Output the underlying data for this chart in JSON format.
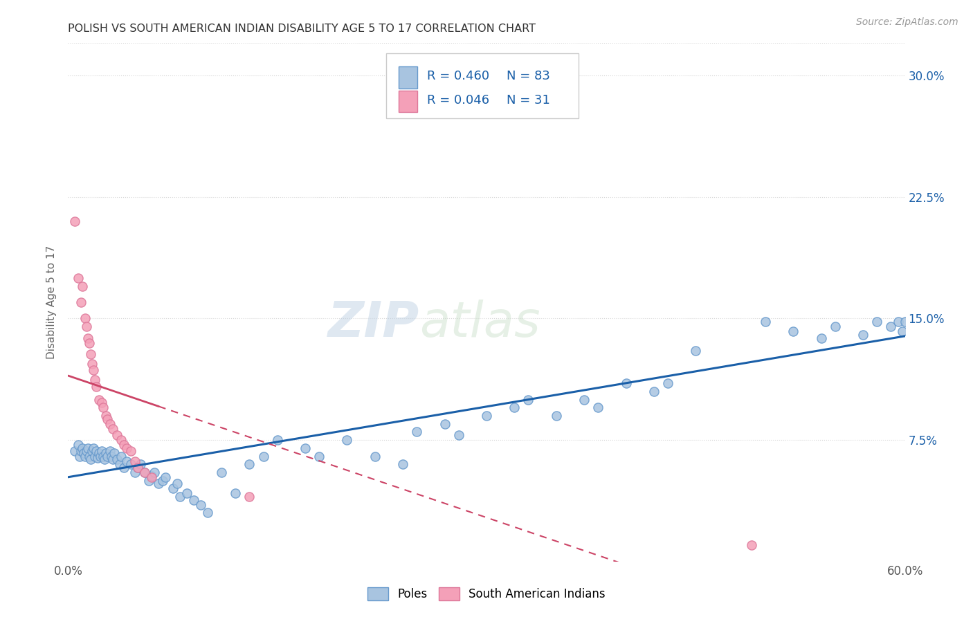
{
  "title": "POLISH VS SOUTH AMERICAN INDIAN DISABILITY AGE 5 TO 17 CORRELATION CHART",
  "source": "Source: ZipAtlas.com",
  "ylabel": "Disability Age 5 to 17",
  "xlim": [
    0.0,
    0.6
  ],
  "ylim": [
    0.0,
    0.32
  ],
  "xticks": [
    0.0,
    0.1,
    0.2,
    0.3,
    0.4,
    0.5,
    0.6
  ],
  "xticklabels": [
    "0.0%",
    "",
    "",
    "",
    "",
    "",
    "60.0%"
  ],
  "yticks": [
    0.0,
    0.075,
    0.15,
    0.225,
    0.3
  ],
  "yticklabels": [
    "",
    "7.5%",
    "15.0%",
    "22.5%",
    "30.0%"
  ],
  "poles_color": "#a8c4e0",
  "poles_edge_color": "#6699cc",
  "sa_color": "#f4a0b8",
  "sa_edge_color": "#dd7799",
  "poles_line_color": "#1a5fa8",
  "sa_line_color": "#cc4466",
  "legend_text_color": "#1a5fa8",
  "watermark_color": "#ccd9e8",
  "background_color": "#ffffff",
  "grid_color": "#d8d8d8",
  "title_color": "#333333",
  "source_color": "#999999",
  "ylabel_color": "#666666",
  "tick_color": "#1a5fa8",
  "poles_x": [
    0.005,
    0.007,
    0.008,
    0.009,
    0.01,
    0.011,
    0.012,
    0.013,
    0.014,
    0.015,
    0.016,
    0.017,
    0.018,
    0.019,
    0.02,
    0.021,
    0.022,
    0.023,
    0.024,
    0.025,
    0.026,
    0.027,
    0.028,
    0.03,
    0.031,
    0.032,
    0.033,
    0.035,
    0.037,
    0.038,
    0.04,
    0.042,
    0.045,
    0.048,
    0.05,
    0.052,
    0.055,
    0.058,
    0.06,
    0.062,
    0.065,
    0.068,
    0.07,
    0.075,
    0.078,
    0.08,
    0.085,
    0.09,
    0.095,
    0.1,
    0.11,
    0.12,
    0.13,
    0.14,
    0.15,
    0.17,
    0.18,
    0.2,
    0.22,
    0.24,
    0.25,
    0.27,
    0.28,
    0.3,
    0.32,
    0.33,
    0.35,
    0.37,
    0.38,
    0.4,
    0.42,
    0.43,
    0.45,
    0.5,
    0.52,
    0.54,
    0.55,
    0.57,
    0.58,
    0.59,
    0.595,
    0.598,
    0.6
  ],
  "poles_y": [
    0.068,
    0.072,
    0.065,
    0.068,
    0.07,
    0.067,
    0.065,
    0.068,
    0.07,
    0.065,
    0.063,
    0.068,
    0.07,
    0.065,
    0.068,
    0.064,
    0.067,
    0.065,
    0.068,
    0.065,
    0.063,
    0.067,
    0.065,
    0.068,
    0.065,
    0.063,
    0.067,
    0.063,
    0.06,
    0.065,
    0.058,
    0.062,
    0.06,
    0.055,
    0.058,
    0.06,
    0.055,
    0.05,
    0.053,
    0.055,
    0.048,
    0.05,
    0.052,
    0.045,
    0.048,
    0.04,
    0.042,
    0.038,
    0.035,
    0.03,
    0.055,
    0.042,
    0.06,
    0.065,
    0.075,
    0.07,
    0.065,
    0.075,
    0.065,
    0.06,
    0.08,
    0.085,
    0.078,
    0.09,
    0.095,
    0.1,
    0.09,
    0.1,
    0.095,
    0.11,
    0.105,
    0.11,
    0.13,
    0.148,
    0.142,
    0.138,
    0.145,
    0.14,
    0.148,
    0.145,
    0.148,
    0.142,
    0.148
  ],
  "sa_x": [
    0.005,
    0.007,
    0.009,
    0.01,
    0.012,
    0.013,
    0.014,
    0.015,
    0.016,
    0.017,
    0.018,
    0.019,
    0.02,
    0.022,
    0.024,
    0.025,
    0.027,
    0.028,
    0.03,
    0.032,
    0.035,
    0.038,
    0.04,
    0.042,
    0.045,
    0.048,
    0.05,
    0.055,
    0.06,
    0.13,
    0.49
  ],
  "sa_y": [
    0.21,
    0.175,
    0.16,
    0.17,
    0.15,
    0.145,
    0.138,
    0.135,
    0.128,
    0.122,
    0.118,
    0.112,
    0.108,
    0.1,
    0.098,
    0.095,
    0.09,
    0.088,
    0.085,
    0.082,
    0.078,
    0.075,
    0.072,
    0.07,
    0.068,
    0.062,
    0.058,
    0.055,
    0.052,
    0.04,
    0.01
  ]
}
